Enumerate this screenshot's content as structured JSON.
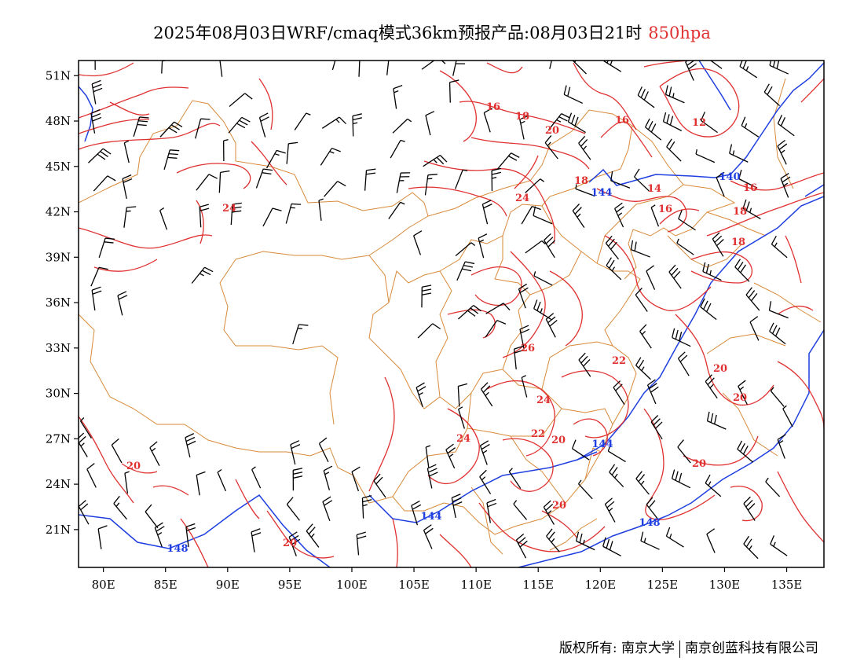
{
  "title": {
    "main": "2025年08月03日WRF/cmaq模式36km预报产品:08月03日21时",
    "level": "850hpa"
  },
  "map": {
    "lon_range": [
      78,
      138
    ],
    "lat_range": [
      18.5,
      52
    ],
    "lon_ticks": [
      "80E",
      "85E",
      "90E",
      "95E",
      "100E",
      "105E",
      "110E",
      "115E",
      "120E",
      "125E",
      "130E",
      "135E"
    ],
    "lat_ticks": [
      "51N",
      "48N",
      "45N",
      "42N",
      "39N",
      "36N",
      "33N",
      "30N",
      "27N",
      "24N",
      "21N"
    ],
    "colors": {
      "temperature": "#e03030",
      "geopotential": "#1f3fe0",
      "border": "#d88a3a",
      "wind": "#000000"
    },
    "temperature_labels": [
      "16",
      "18",
      "20",
      "16",
      "12",
      "18",
      "14",
      "16",
      "16",
      "18",
      "18",
      "24",
      "24",
      "26",
      "22",
      "24",
      "22",
      "20",
      "24",
      "20",
      "20",
      "20",
      "20",
      "20",
      "20"
    ],
    "geopotential_labels": [
      "144",
      "140",
      "144",
      "144",
      "148",
      "148"
    ]
  },
  "credit": {
    "left": "版权所有: 南京大学",
    "right": "南京创蓝科技有限公司"
  }
}
